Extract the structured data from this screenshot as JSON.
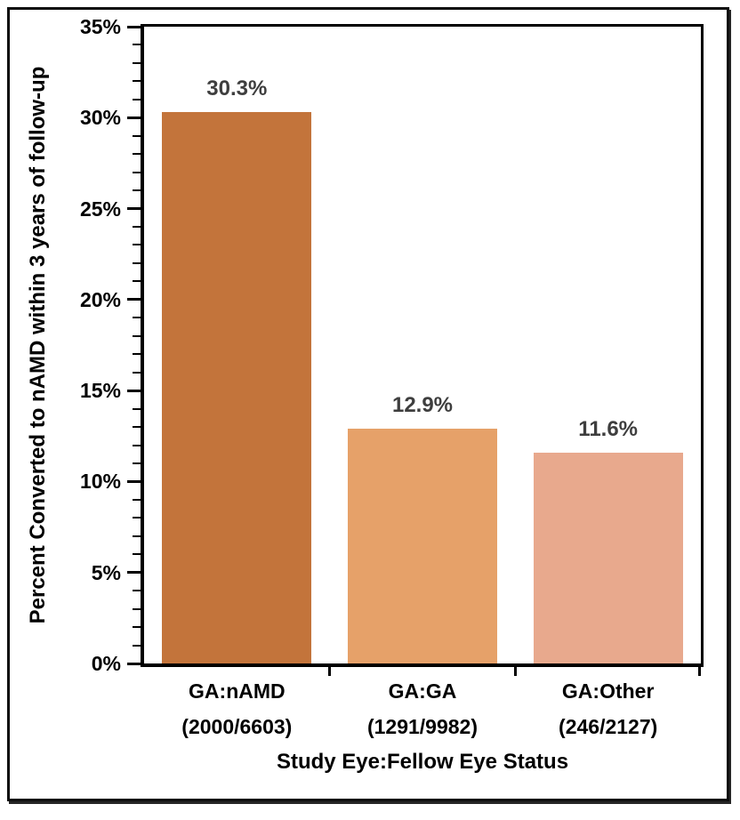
{
  "chart_data": {
    "type": "bar",
    "title": "",
    "xlabel": "Study Eye:Fellow Eye Status",
    "ylabel": "Percent Converted to nAMD within 3 years of follow-up",
    "categories": [
      "GA:nAMD",
      "GA:GA",
      "GA:Other"
    ],
    "category_sublabels": [
      "(2000/6603)",
      "(1291/9982)",
      "(246/2127)"
    ],
    "values": [
      30.3,
      12.9,
      11.6
    ],
    "value_labels": [
      "30.3%",
      "12.9%",
      "11.6%"
    ],
    "bar_colors": [
      "#C3743B",
      "#E6A169",
      "#E8A98D"
    ],
    "ylim": [
      0,
      35
    ],
    "y_major_step": 5,
    "y_minor_step": 1,
    "y_tick_labels": [
      "0%",
      "5%",
      "10%",
      "15%",
      "20%",
      "25%",
      "30%",
      "35%"
    ],
    "grid": false,
    "legend": null,
    "value_label_color": "#3E3E3E",
    "axis_color": "#000000"
  }
}
